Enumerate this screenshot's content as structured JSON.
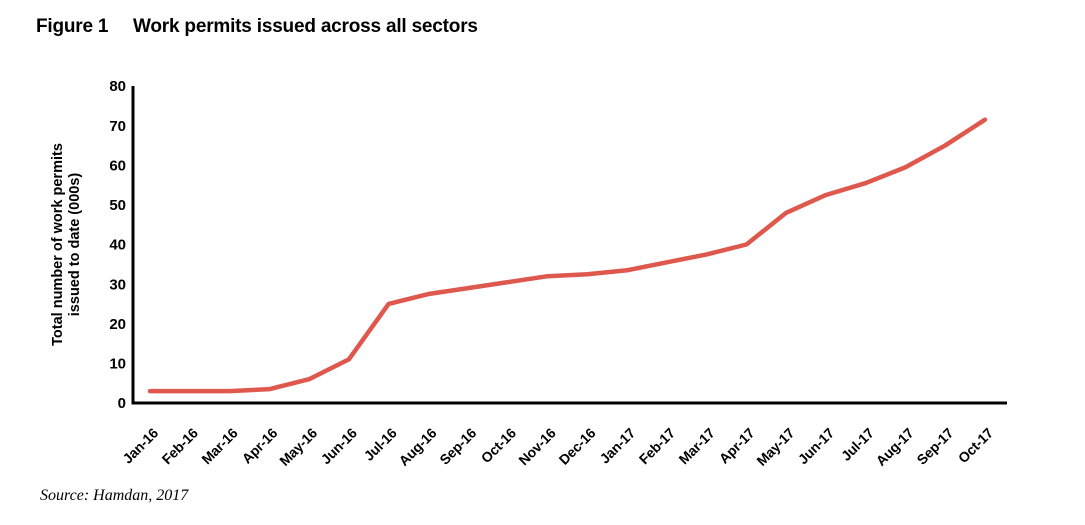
{
  "figure": {
    "label": "Figure 1",
    "title": "Work permits issued across all sectors",
    "source": "Source: Hamdan, 2017"
  },
  "chart_data": {
    "type": "line",
    "title": "Work permits issued across all sectors",
    "xlabel": "",
    "ylabel": "Total number of work permits issued to date (000s)",
    "ylabel_lines": [
      "Total number of work permits",
      "issued to date (000s)"
    ],
    "ylim": [
      0,
      80
    ],
    "yticks": [
      0,
      10,
      20,
      30,
      40,
      50,
      60,
      70,
      80
    ],
    "grid": false,
    "legend_position": "none",
    "line_color": "#df584e",
    "axis_color": "#000000",
    "categories": [
      "Jan-16",
      "Feb-16",
      "Mar-16",
      "Apr-16",
      "May-16",
      "Jun-16",
      "Jul-16",
      "Aug-16",
      "Sep-16",
      "Oct-16",
      "Nov-16",
      "Dec-16",
      "Jan-17",
      "Feb-17",
      "Mar-17",
      "Apr-17",
      "May-17",
      "Jun-17",
      "Jul-17",
      "Aug-17",
      "Sep-17",
      "Oct-17"
    ],
    "values": [
      3,
      3,
      3,
      3.5,
      6,
      11,
      25,
      27.5,
      29,
      30.5,
      32,
      32.5,
      33.5,
      35.5,
      37.5,
      40,
      48,
      52.5,
      55.5,
      59.5,
      65,
      71.5
    ]
  }
}
